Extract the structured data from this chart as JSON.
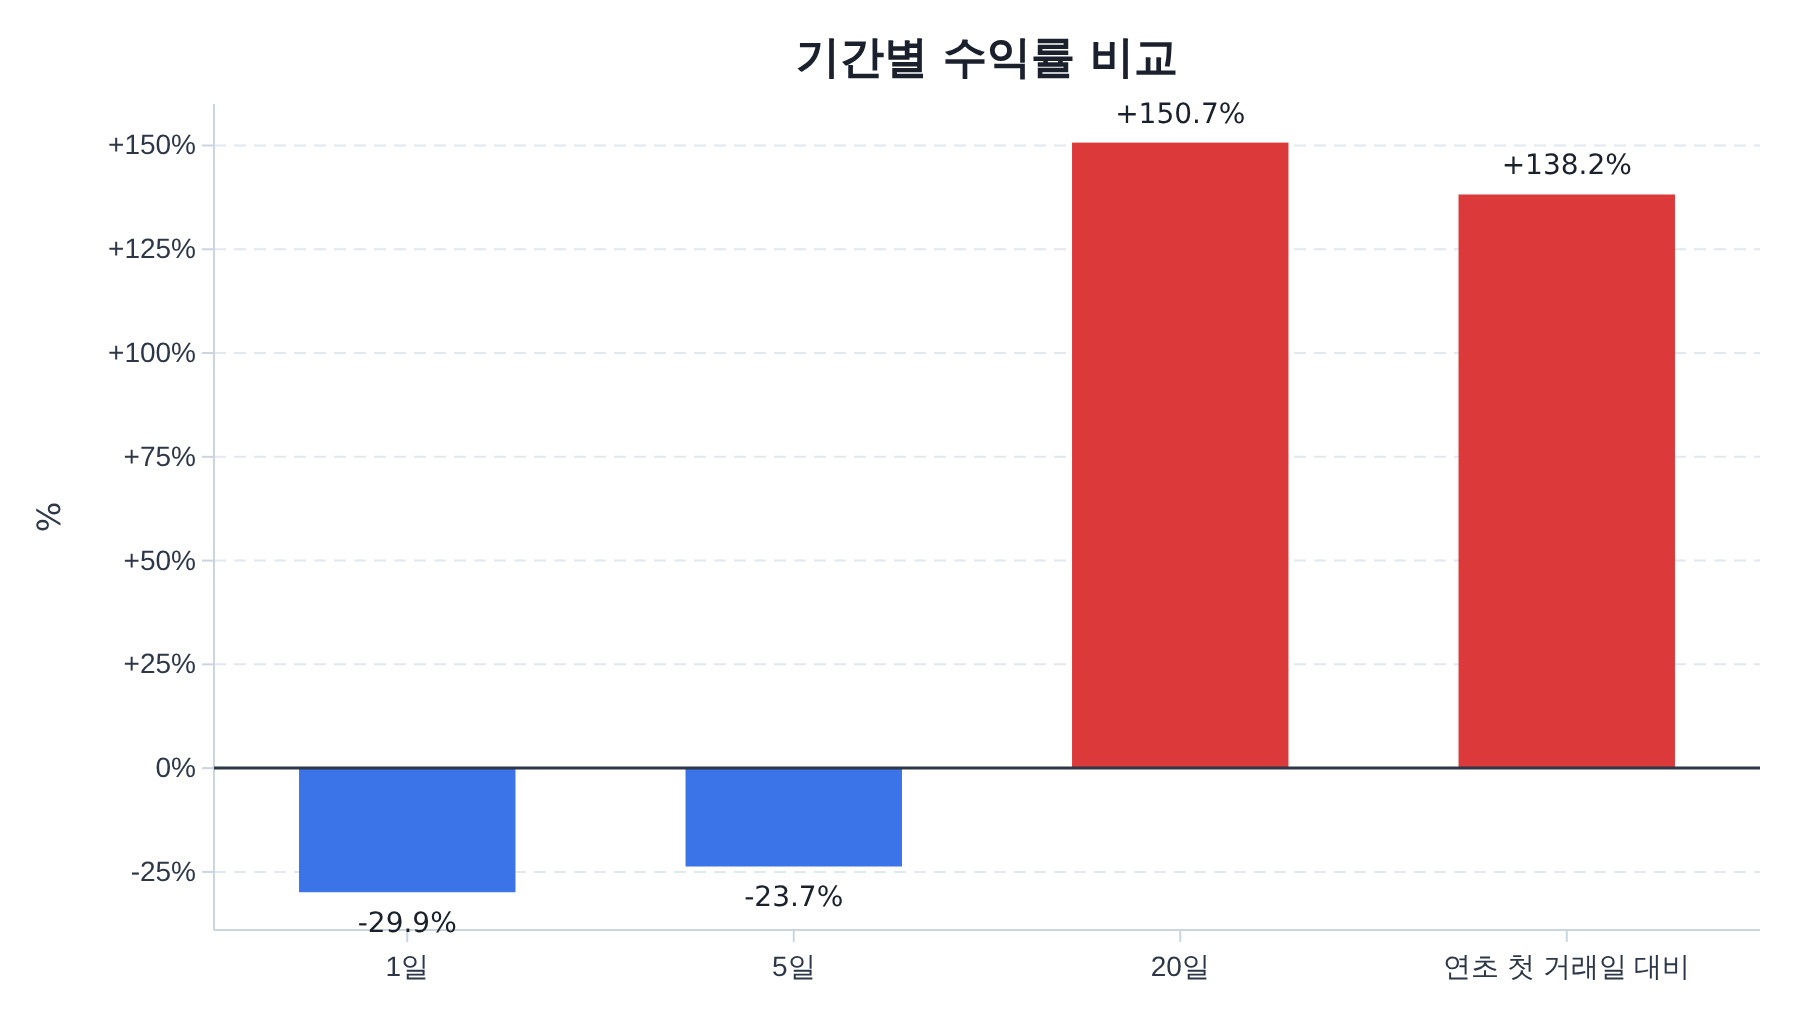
{
  "chart_data": {
    "type": "bar",
    "title": "기간별 수익률 비교",
    "ylabel": "%",
    "categories": [
      "1일",
      "5일",
      "20일",
      "연초 첫 거래일 대비"
    ],
    "values": [
      -29.9,
      -23.7,
      150.7,
      138.2
    ],
    "colors": [
      "#3b73e8",
      "#3b73e8",
      "#dc3a3a",
      "#dc3a3a"
    ],
    "value_labels": [
      "-29.9%",
      "-23.7%",
      "+150.7%",
      "+138.2%"
    ],
    "ylim": [
      -39,
      160
    ],
    "yticks": [
      {
        "value": -25,
        "label": "-25%"
      },
      {
        "value": 0,
        "label": "0%"
      },
      {
        "value": 25,
        "label": "+25%"
      },
      {
        "value": 50,
        "label": "+50%"
      },
      {
        "value": 75,
        "label": "+75%"
      },
      {
        "value": 100,
        "label": "+100%"
      },
      {
        "value": 125,
        "label": "+125%"
      },
      {
        "value": 150,
        "label": "+150%"
      }
    ],
    "ref_lines": [
      {
        "axis": "y",
        "value": 0,
        "color": "#2d3748"
      }
    ],
    "grid": "y"
  }
}
